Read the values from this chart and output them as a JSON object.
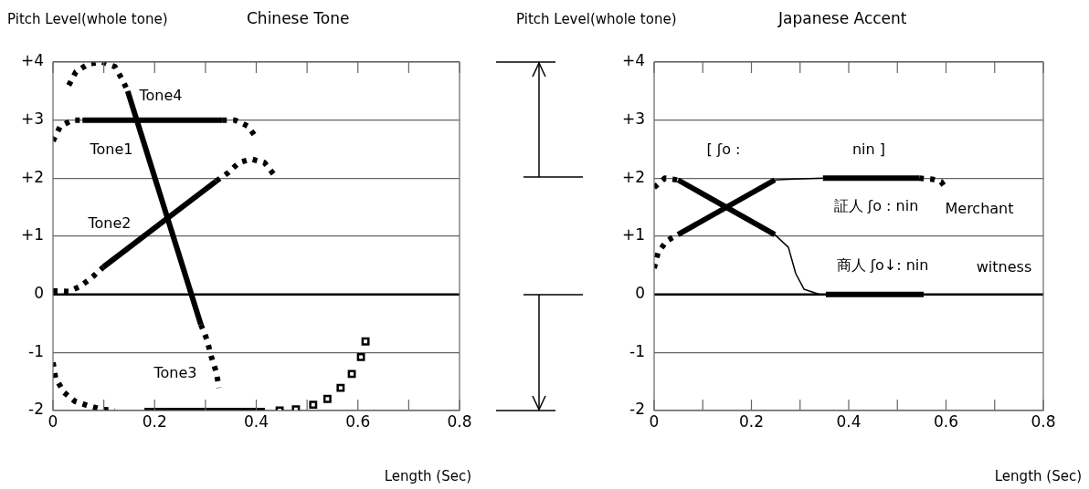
{
  "chart_data": [
    {
      "type": "line",
      "title": "Chinese Tone",
      "ylabel": "Pitch Level(whole tone)",
      "xlabel": "Length (Sec)",
      "xlim": [
        0,
        0.8
      ],
      "ylim": [
        -2,
        4
      ],
      "xticks": [
        0,
        {
          "value": 0.1,
          "label": null
        },
        0.2,
        {
          "value": 0.3,
          "label": null
        },
        0.4,
        {
          "value": 0.5,
          "label": null
        },
        0.6,
        {
          "value": 0.7,
          "label": null
        },
        0.8
      ],
      "yticks": [
        {
          "value": -2,
          "label": "-2"
        },
        {
          "value": -1,
          "label": "-1"
        },
        0,
        {
          "value": 1,
          "label": "+1"
        },
        {
          "value": 2,
          "label": "+2"
        },
        {
          "value": 3,
          "label": "+3"
        },
        {
          "value": 4,
          "label": "+4"
        }
      ],
      "grid": "y",
      "legend": false,
      "ref_lines": [
        {
          "axis": "y",
          "value": 0,
          "color": "#000000"
        }
      ],
      "annotations": [
        "Tone4",
        "Tone1",
        "Tone2",
        "Tone3"
      ],
      "series": [
        {
          "color": "#000000",
          "line_style": "dotted",
          "x": [
            0,
            0.014,
            0.038,
            0.058
          ],
          "values": [
            2.64,
            2.89,
            3.0,
            3.0
          ]
        },
        {
          "color": "#000000",
          "line_style": "solid",
          "x": [
            0.058,
            0.333
          ],
          "values": [
            3.0,
            3.0
          ]
        },
        {
          "color": "#000000",
          "line_style": "dotted",
          "x": [
            0.333,
            0.358,
            0.383,
            0.4
          ],
          "values": [
            3.0,
            3.0,
            2.9,
            2.7
          ]
        },
        {
          "color": "#000000",
          "line_style": "dotted",
          "x": [
            0.031,
            0.045,
            0.07,
            0.097,
            0.122,
            0.138,
            0.147
          ],
          "values": [
            3.6,
            3.83,
            3.97,
            4.0,
            3.92,
            3.67,
            3.5
          ]
        },
        {
          "color": "#000000",
          "line_style": "solid",
          "x": [
            0.147,
            0.291
          ],
          "values": [
            3.5,
            -0.52
          ]
        },
        {
          "color": "#000000",
          "line_style": "dotted",
          "x": [
            0.291,
            0.303,
            0.311,
            0.321,
            0.327
          ],
          "values": [
            -0.52,
            -0.78,
            -1.06,
            -1.33,
            -1.61
          ]
        },
        {
          "color": "#000000",
          "line_style": "dotted",
          "x": [
            0,
            0.031,
            0.054,
            0.079,
            0.099
          ],
          "values": [
            0.06,
            0.05,
            0.14,
            0.31,
            0.47
          ]
        },
        {
          "color": "#000000",
          "line_style": "solid",
          "x": [
            0.099,
            0.321
          ],
          "values": [
            0.47,
            1.95
          ]
        },
        {
          "color": "#000000",
          "line_style": "dotted",
          "x": [
            0.321,
            0.344,
            0.366,
            0.39,
            0.416,
            0.435
          ],
          "values": [
            1.95,
            2.09,
            2.27,
            2.33,
            2.27,
            2.06
          ]
        },
        {
          "color": "#000000",
          "line_style": "dotted",
          "x": [
            0,
            0.005,
            0.022,
            0.043,
            0.07,
            0.097,
            0.122
          ],
          "values": [
            -1.17,
            -1.44,
            -1.69,
            -1.84,
            -1.92,
            -1.98,
            -2.0
          ]
        },
        {
          "color": "#000000",
          "line_style": "solid",
          "x": [
            0.18,
            0.417
          ],
          "values": [
            -2.0,
            -2.0
          ]
        },
        {
          "type": "scatter",
          "color": "#000000",
          "marker": "square",
          "x": [
            0.446,
            0.478,
            0.512,
            0.54,
            0.566,
            0.588,
            0.606,
            0.615
          ],
          "values": [
            -2.0,
            -1.98,
            -1.9,
            -1.8,
            -1.61,
            -1.37,
            -1.08,
            -0.81
          ]
        }
      ]
    },
    {
      "type": "line",
      "title": "Japanese Accent",
      "ylabel": "Pitch Level(whole tone)",
      "xlabel": "Length (Sec)",
      "xlim": [
        0,
        0.8
      ],
      "ylim": [
        -2,
        4
      ],
      "xticks": [
        0,
        {
          "value": 0.1,
          "label": null
        },
        0.2,
        {
          "value": 0.3,
          "label": null
        },
        0.4,
        {
          "value": 0.5,
          "label": null
        },
        0.6,
        {
          "value": 0.7,
          "label": null
        },
        0.8
      ],
      "yticks": [
        {
          "value": -2,
          "label": "-2"
        },
        {
          "value": -1,
          "label": "-1"
        },
        0,
        {
          "value": 1,
          "label": "+1"
        },
        {
          "value": 2,
          "label": "+2"
        },
        {
          "value": 3,
          "label": "+3"
        },
        {
          "value": 4,
          "label": "+4"
        }
      ],
      "grid": "y",
      "legend": false,
      "ref_lines": [
        {
          "axis": "y",
          "value": 0,
          "color": "#000000"
        }
      ],
      "annotations": [
        "[ ʃo :",
        "nin ]",
        "証人 ʃo : nin",
        "Merchant",
        "商人 ʃo↓: nin",
        "witness"
      ],
      "series": [
        {
          "color": "#000000",
          "line_style": "dotted",
          "x": [
            0,
            0.022,
            0.049
          ],
          "values": [
            1.84,
            2.0,
            1.97
          ]
        },
        {
          "color": "#000000",
          "line_style": "solid",
          "x": [
            0.049,
            0.248
          ],
          "values": [
            1.97,
            1.03
          ]
        },
        {
          "color": "#000000",
          "x": [
            0.248,
            0.276,
            0.291,
            0.308,
            0.34,
            0.353
          ],
          "values": [
            1.03,
            0.81,
            0.36,
            0.09,
            0.0,
            0.0
          ]
        },
        {
          "color": "#000000",
          "line_style": "solid",
          "x": [
            0.353,
            0.554
          ],
          "values": [
            0.0,
            0.0
          ]
        },
        {
          "color": "#000000",
          "line_style": "dotted",
          "x": [
            0,
            0.008,
            0.026,
            0.049
          ],
          "values": [
            0.45,
            0.72,
            0.92,
            1.03
          ]
        },
        {
          "color": "#000000",
          "line_style": "solid",
          "x": [
            0.049,
            0.248
          ],
          "values": [
            1.03,
            1.97
          ]
        },
        {
          "color": "#000000",
          "x": [
            0.248,
            0.276,
            0.347
          ],
          "values": [
            1.97,
            1.98,
            2.0
          ]
        },
        {
          "color": "#000000",
          "line_style": "solid",
          "x": [
            0.347,
            0.545
          ],
          "values": [
            2.0,
            2.0
          ]
        },
        {
          "color": "#000000",
          "line_style": "dotted",
          "x": [
            0.545,
            0.573,
            0.59,
            0.601
          ],
          "values": [
            2.0,
            1.98,
            1.94,
            1.81
          ]
        }
      ]
    }
  ]
}
